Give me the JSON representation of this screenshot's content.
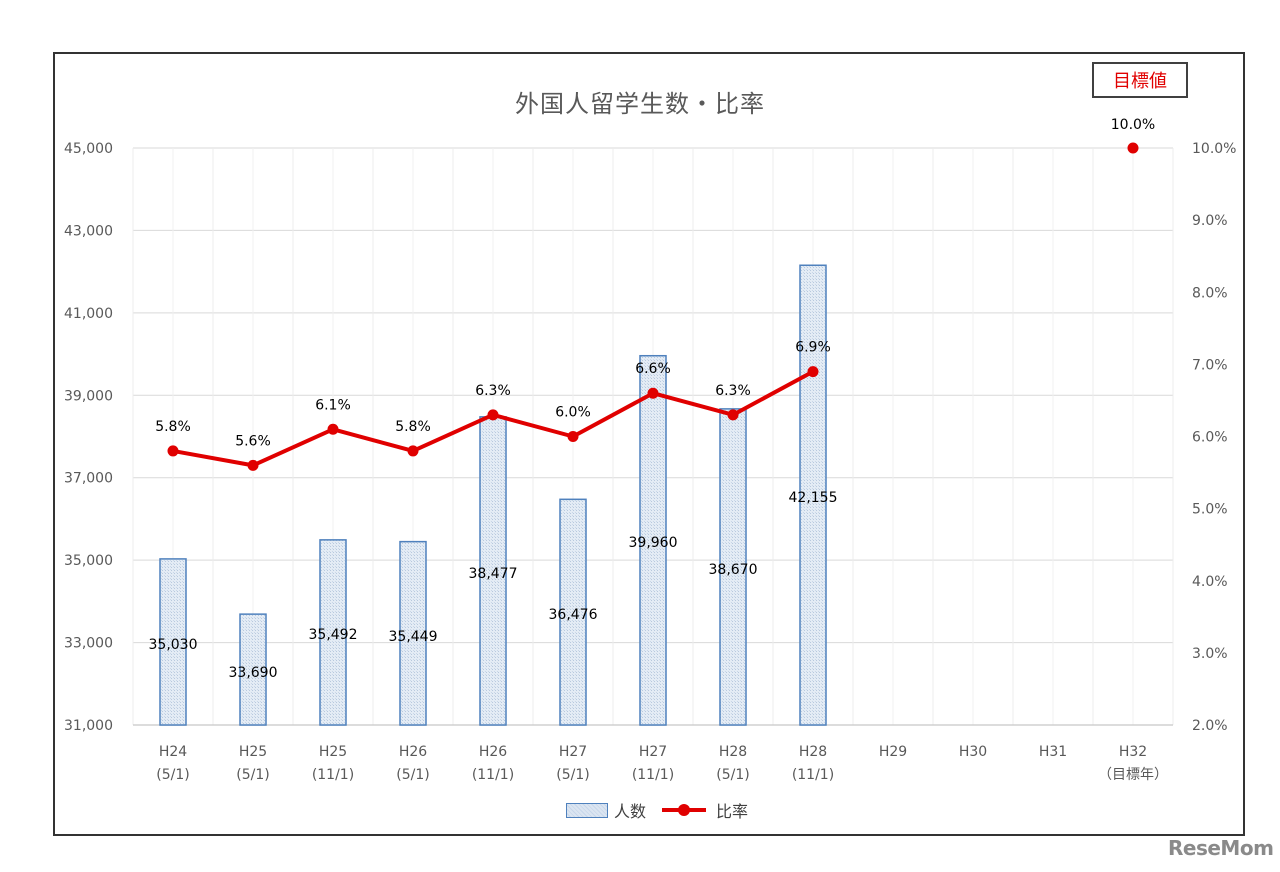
{
  "chart_data": {
    "type": "bar+line",
    "title": "外国人留学生数・比率",
    "categories": [
      [
        "H24",
        "(5/1)"
      ],
      [
        "H25",
        "(5/1)"
      ],
      [
        "H25",
        "(11/1)"
      ],
      [
        "H26",
        "(5/1)"
      ],
      [
        "H26",
        "(11/1)"
      ],
      [
        "H27",
        "(5/1)"
      ],
      [
        "H27",
        "(11/1)"
      ],
      [
        "H28",
        "(5/1)"
      ],
      [
        "H28",
        "(11/1)"
      ],
      [
        "H29",
        ""
      ],
      [
        "H30",
        ""
      ],
      [
        "H31",
        ""
      ],
      [
        "H32",
        "（目標年）"
      ]
    ],
    "series": [
      {
        "name": "人数",
        "type": "bar",
        "axis": "left",
        "color": "#4f81bd",
        "values": [
          35030,
          33690,
          35492,
          35449,
          38477,
          36476,
          39960,
          38670,
          42155,
          null,
          null,
          null,
          null
        ],
        "labels": [
          "35,030",
          "33,690",
          "35,492",
          "35,449",
          "38,477",
          "36,476",
          "39,960",
          "38,670",
          "42,155"
        ]
      },
      {
        "name": "比率",
        "type": "line",
        "axis": "right",
        "color": "#e00000",
        "values": [
          5.8,
          5.6,
          6.1,
          5.8,
          6.3,
          6.0,
          6.6,
          6.3,
          6.9,
          null,
          null,
          null,
          null
        ],
        "labels": [
          "5.8%",
          "5.6%",
          "6.1%",
          "5.8%",
          "6.3%",
          "6.0%",
          "6.6%",
          "6.3%",
          "6.9%"
        ],
        "highlight_index": 8,
        "highlight_color": "#e00000"
      },
      {
        "name": "目標値",
        "type": "point",
        "axis": "right",
        "color": "#e00000",
        "index": 12,
        "value": 10.0,
        "label": "10.0%"
      }
    ],
    "y_left": {
      "ylim": [
        31000,
        45000
      ],
      "ticks": [
        "31,000",
        "33,000",
        "35,000",
        "37,000",
        "39,000",
        "41,000",
        "43,000",
        "45,000"
      ]
    },
    "y_right": {
      "ylim": [
        2.0,
        10.0
      ],
      "ticks": [
        "2.0%",
        "3.0%",
        "4.0%",
        "5.0%",
        "6.0%",
        "7.0%",
        "8.0%",
        "9.0%",
        "10.0%"
      ]
    },
    "legend": {
      "position": "bottom",
      "items": [
        "人数",
        "比率"
      ]
    },
    "grid": true,
    "annotation": "目標値"
  },
  "title": "外国人留学生数・比率",
  "target_label": "目標値",
  "legend": {
    "bars": "人数",
    "line": "比率"
  },
  "watermark": "ReseMom"
}
